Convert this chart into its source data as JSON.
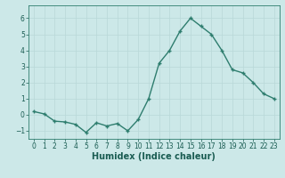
{
  "x": [
    0,
    1,
    2,
    3,
    4,
    5,
    6,
    7,
    8,
    9,
    10,
    11,
    12,
    13,
    14,
    15,
    16,
    17,
    18,
    19,
    20,
    21,
    22,
    23
  ],
  "y": [
    0.2,
    0.05,
    -0.4,
    -0.45,
    -0.6,
    -1.1,
    -0.5,
    -0.7,
    -0.55,
    -1.0,
    -0.3,
    1.0,
    3.2,
    4.0,
    5.2,
    6.0,
    5.5,
    5.0,
    4.0,
    2.8,
    2.6,
    2.0,
    1.3,
    1.0
  ],
  "line_color": "#2e7d6e",
  "marker": "+",
  "marker_size": 3.5,
  "linewidth": 1.0,
  "background_color": "#cce8e8",
  "grid_color": "#b8d8d8",
  "xlabel": "Humidex (Indice chaleur)",
  "xlabel_fontsize": 7,
  "ylim": [
    -1.5,
    6.8
  ],
  "xlim": [
    -0.5,
    23.5
  ],
  "yticks": [
    -1,
    0,
    1,
    2,
    3,
    4,
    5,
    6
  ],
  "xticks": [
    0,
    1,
    2,
    3,
    4,
    5,
    6,
    7,
    8,
    9,
    10,
    11,
    12,
    13,
    14,
    15,
    16,
    17,
    18,
    19,
    20,
    21,
    22,
    23
  ],
  "tick_fontsize": 5.5,
  "tick_color": "#1a5c52",
  "spine_color": "#2e7d6e",
  "markeredgewidth": 1.0
}
